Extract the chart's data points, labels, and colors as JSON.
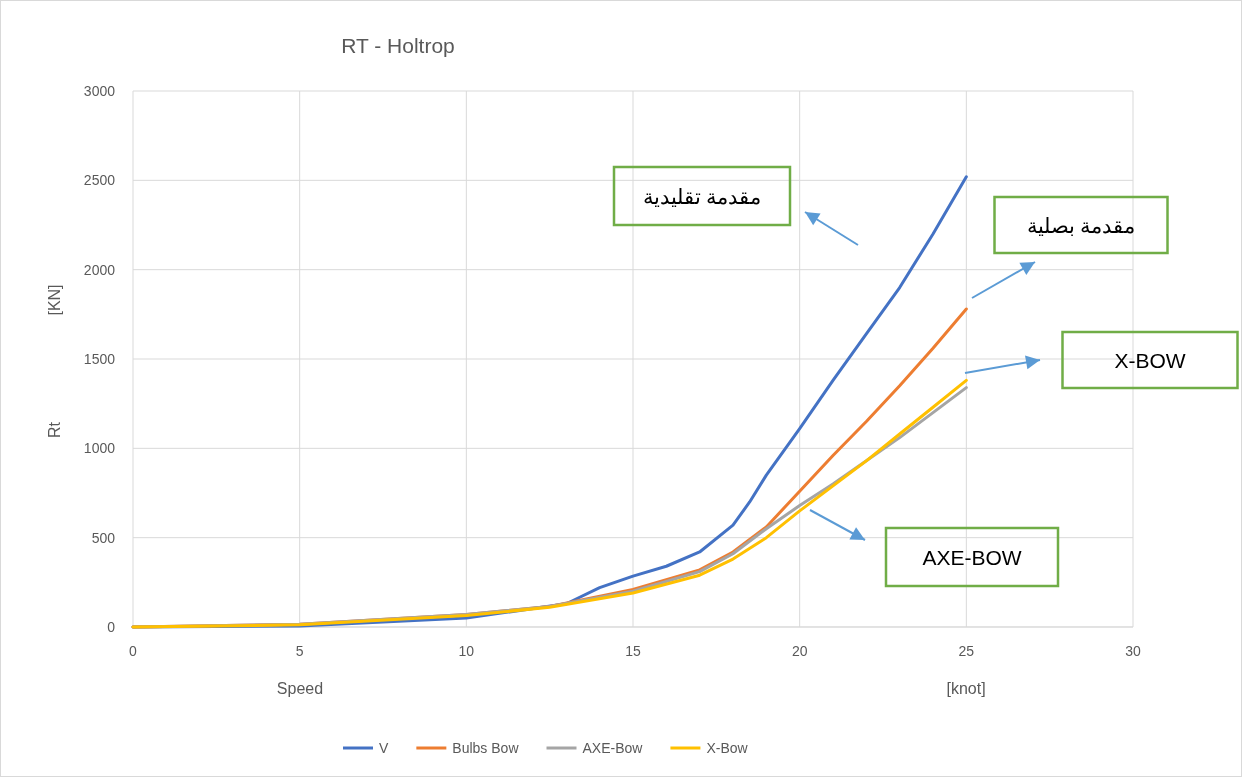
{
  "chart_data": {
    "type": "line",
    "title": "RT - Holtrop",
    "xlabel": "Speed",
    "ylabel": "Rt",
    "xlim": [
      0,
      30
    ],
    "xticks": [
      0,
      5,
      10,
      15,
      20,
      25,
      30
    ],
    "ylim": [
      0,
      3000
    ],
    "yticks": [
      0,
      500,
      1000,
      1500,
      2000,
      2500,
      3000
    ],
    "grid": true,
    "legend": "bottom",
    "line_style": "solid",
    "marker": "none",
    "series": [
      {
        "name": "V",
        "color": "#4472c4",
        "x": [
          0,
          5,
          10,
          13,
          14,
          15,
          16,
          17,
          18,
          18.5,
          19,
          20,
          21,
          22,
          23,
          24,
          25
        ],
        "values": [
          0,
          5,
          50,
          130,
          220,
          285,
          340,
          420,
          570,
          700,
          850,
          1110,
          1380,
          1640,
          1900,
          2200,
          2520
        ]
      },
      {
        "name": "Bulbs Bow",
        "color": "#ed7d31",
        "x": [
          0,
          5,
          10,
          12.5,
          15,
          17,
          18,
          19,
          20,
          21,
          22,
          23,
          24,
          25
        ],
        "values": [
          0,
          15,
          70,
          115,
          210,
          320,
          420,
          560,
          760,
          960,
          1150,
          1350,
          1560,
          1780
        ]
      },
      {
        "name": "AXE-Bow",
        "color": "#a5a5a5",
        "x": [
          0,
          5,
          10,
          12.5,
          15,
          17,
          18,
          19,
          20,
          21,
          22,
          23,
          24,
          25
        ],
        "values": [
          0,
          15,
          70,
          115,
          200,
          310,
          410,
          550,
          680,
          800,
          930,
          1060,
          1200,
          1340
        ]
      },
      {
        "name": "X-Bow",
        "color": "#ffc000",
        "x": [
          0,
          5,
          10,
          12.5,
          15,
          17,
          18,
          19,
          20,
          21,
          22,
          23,
          24,
          25
        ],
        "values": [
          0,
          12,
          65,
          110,
          190,
          290,
          380,
          500,
          650,
          790,
          930,
          1080,
          1230,
          1380
        ]
      }
    ],
    "annotations": [
      "مقدمة تقليدية",
      "مقدمة بصلية",
      "X-BOW",
      "AXE-BOW",
      "[KN]",
      "[knot]"
    ]
  }
}
